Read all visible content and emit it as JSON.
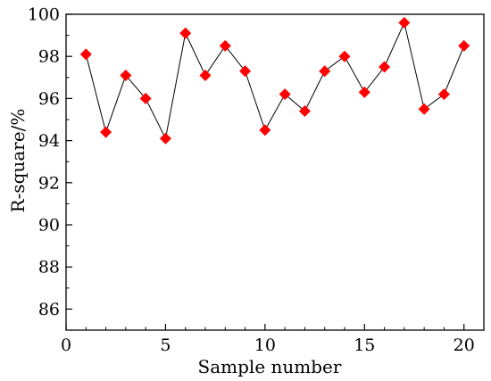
{
  "chart_data": {
    "type": "line",
    "title": "",
    "xlabel": "Sample number",
    "ylabel": "R-square/%",
    "xlim": [
      0,
      21
    ],
    "ylim": [
      85,
      100
    ],
    "xticks": [
      0,
      5,
      10,
      15,
      20
    ],
    "yticks": [
      86,
      88,
      90,
      92,
      94,
      96,
      98,
      100
    ],
    "grid": false,
    "series": [
      {
        "marker": "diamond",
        "line_color": "#000000",
        "marker_color": "#ff0000",
        "x": [
          1,
          2,
          3,
          4,
          5,
          6,
          7,
          8,
          9,
          10,
          11,
          12,
          13,
          14,
          15,
          16,
          17,
          18,
          19,
          20
        ],
        "y": [
          98.1,
          94.4,
          97.1,
          96.0,
          94.1,
          99.1,
          97.1,
          98.5,
          97.3,
          94.5,
          96.2,
          95.4,
          97.3,
          98.0,
          96.3,
          97.5,
          99.6,
          95.5,
          96.2,
          98.5
        ]
      }
    ]
  }
}
